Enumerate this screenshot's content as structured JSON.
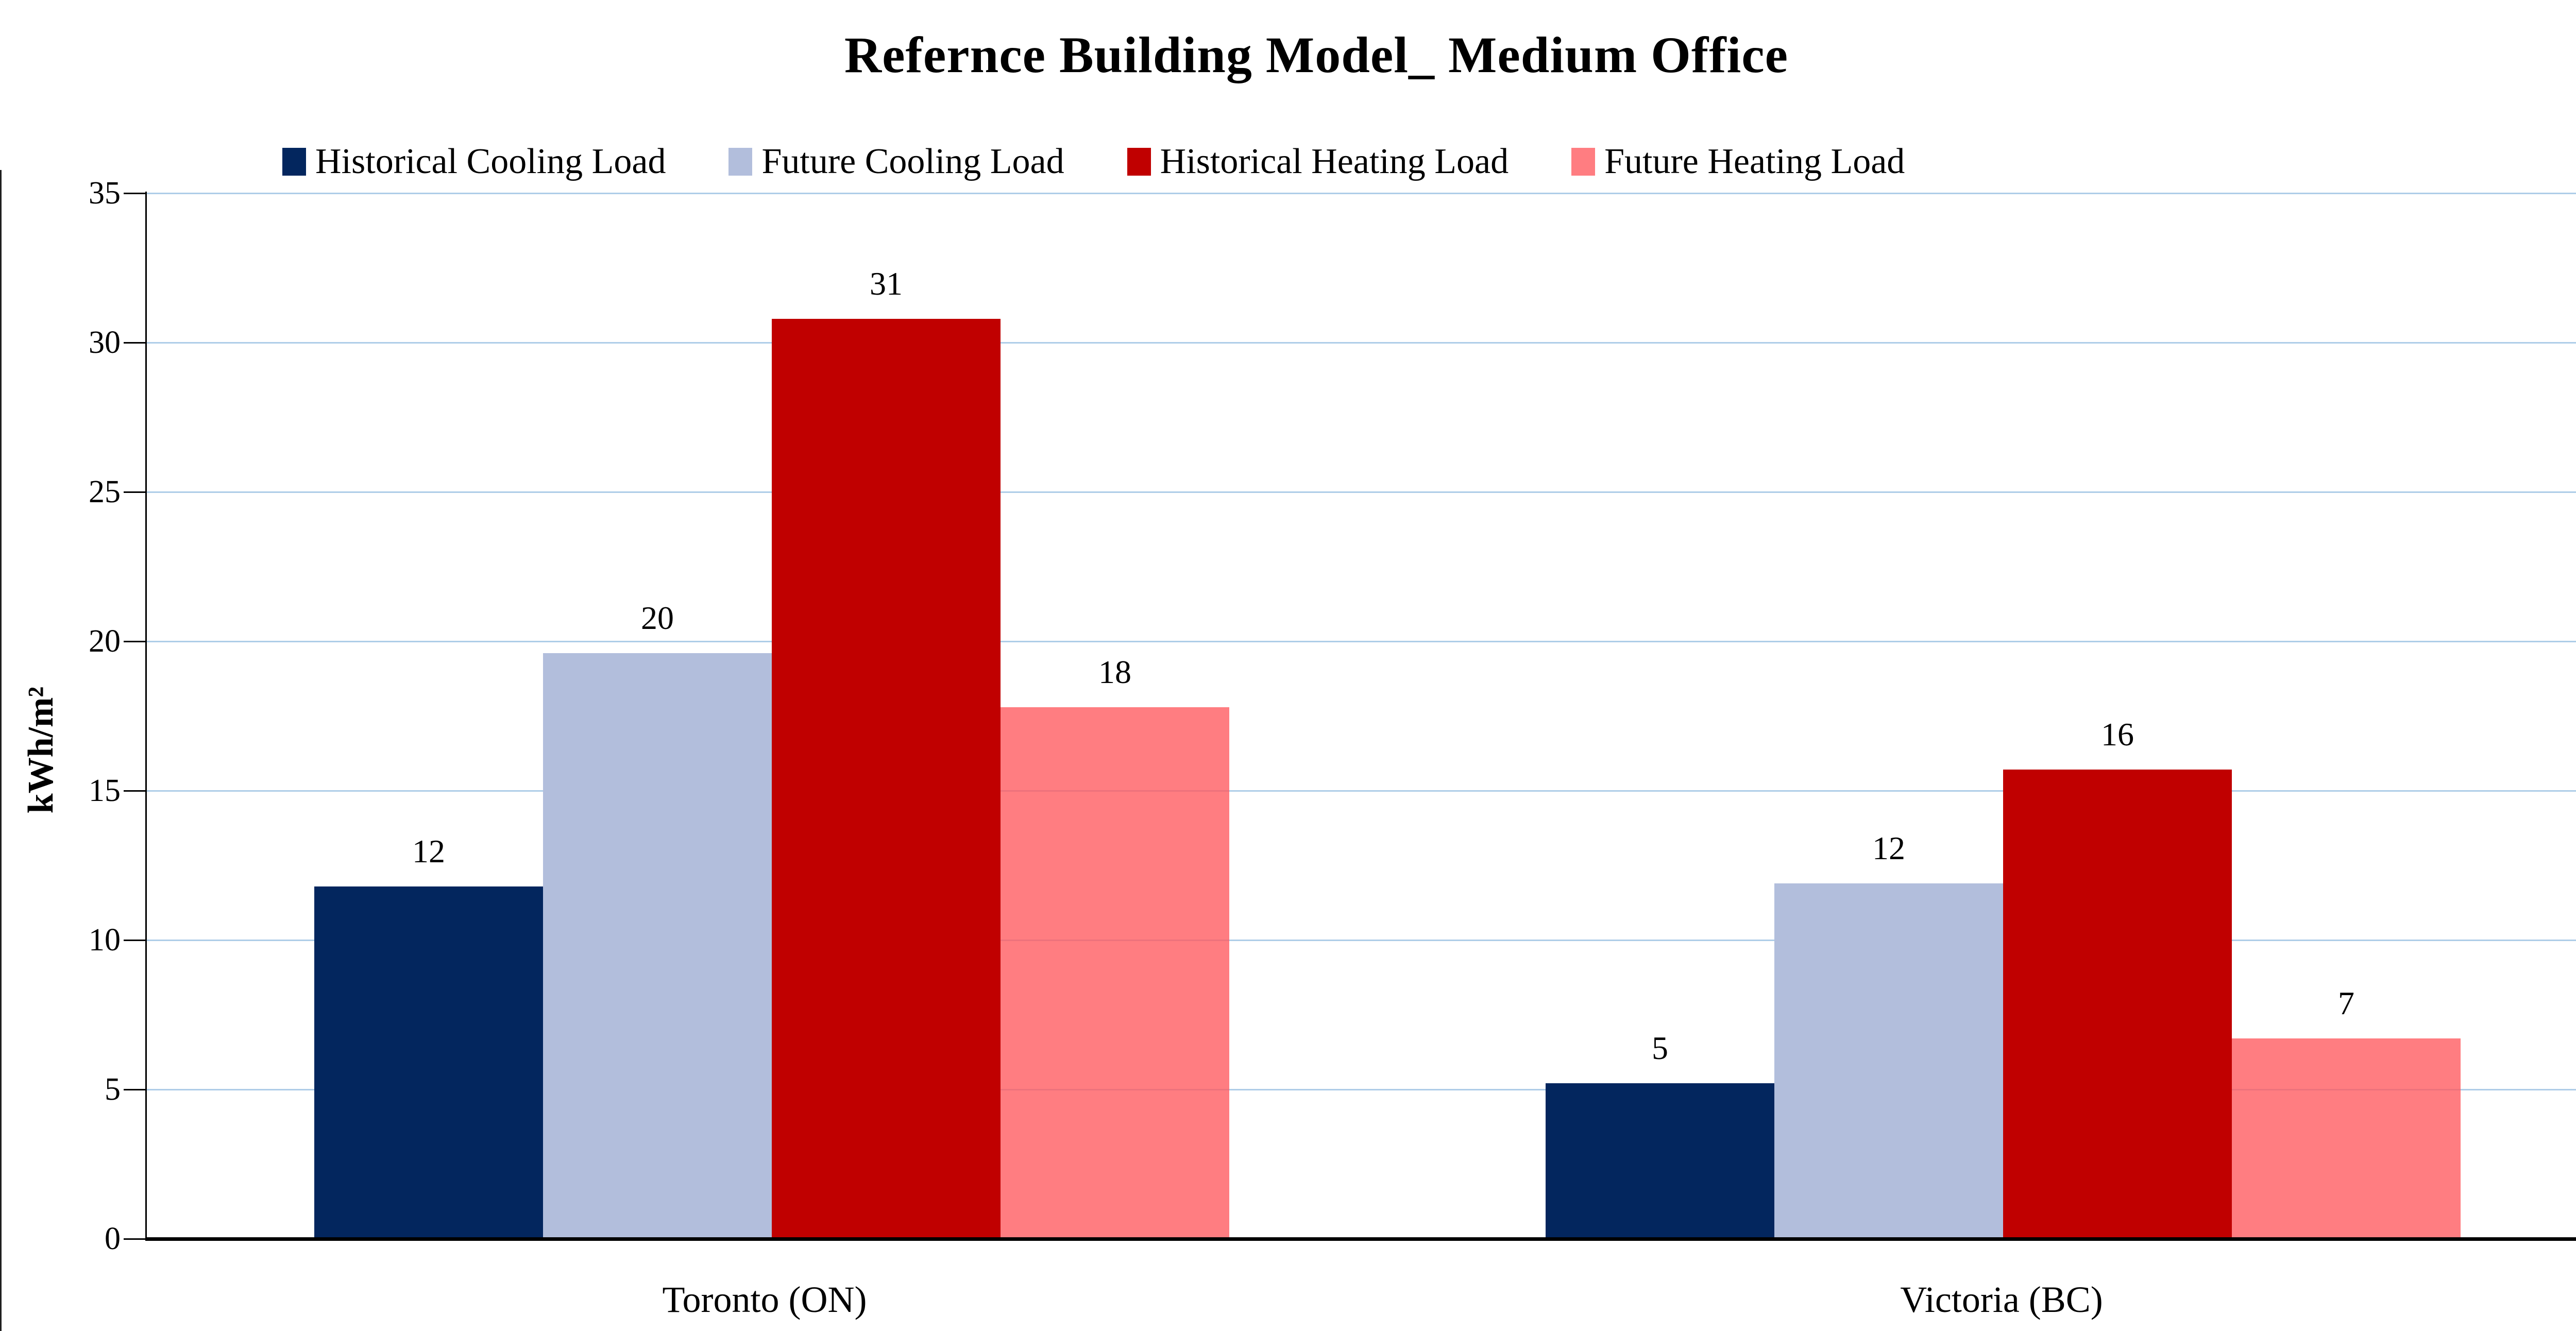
{
  "chart": {
    "title": "Refernce Building Model_ Medium Office"
  },
  "chart_data": {
    "type": "bar",
    "title": "Refernce Building Model_ Medium Office",
    "xlabel": "",
    "ylabel": "kWh/m²",
    "ylim": [
      0,
      35
    ],
    "ytick_step": 5,
    "yticks": [
      0,
      5,
      10,
      15,
      20,
      25,
      30,
      35
    ],
    "categories": [
      "Toronto (ON)",
      "Victoria (BC)"
    ],
    "series": [
      {
        "name": "Historical Cooling Load",
        "color": "#03265E",
        "opacity": 1,
        "values": [
          11.8,
          5.2
        ],
        "labels": [
          "12",
          "5"
        ]
      },
      {
        "name": "Future Cooling Load",
        "color": "#B2BEDC",
        "opacity": 1,
        "values": [
          19.6,
          11.9
        ],
        "labels": [
          "20",
          "12"
        ]
      },
      {
        "name": "Historical Heating Load",
        "color": "#C00000",
        "opacity": 1,
        "values": [
          30.8,
          15.7
        ],
        "labels": [
          "31",
          "16"
        ]
      },
      {
        "name": "Future Heating Load",
        "color": "#FF585E",
        "opacity": 0.78,
        "values": [
          17.8,
          6.7
        ],
        "labels": [
          "18",
          "7"
        ]
      }
    ],
    "grid": true,
    "gridline_color": "#AECDE8",
    "axis_color": "#000000",
    "text_color": "#000000",
    "background_color": "#FFFFFF",
    "legend_position": "top",
    "bar_value_labels_shown": true
  }
}
